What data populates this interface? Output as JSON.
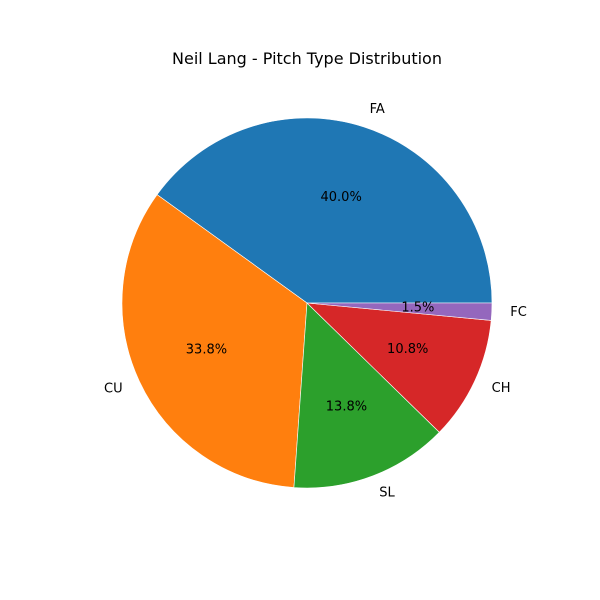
{
  "chart_data": {
    "type": "pie",
    "title": "Neil Lang - Pitch Type Distribution",
    "categories": [
      "FA",
      "CU",
      "SL",
      "CH",
      "FC"
    ],
    "values": [
      40.0,
      33.8,
      13.8,
      10.8,
      1.5
    ],
    "percent_labels": [
      "40.0%",
      "33.8%",
      "13.8%",
      "10.8%",
      "1.5%"
    ],
    "colors": [
      "#1f77b4",
      "#ff7f0e",
      "#2ca02c",
      "#d62728",
      "#9467bd"
    ],
    "start_angle": 0,
    "direction": "counterclockwise",
    "legend": "none"
  }
}
